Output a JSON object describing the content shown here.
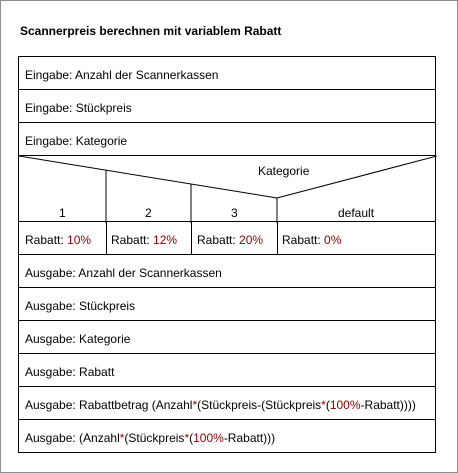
{
  "title": "Scannerpreis berechnen mit variablem Rabatt",
  "inputs": [
    {
      "prefix": "Eingabe: ",
      "text": "Anzahl der Scannerkassen"
    },
    {
      "prefix": "Eingabe: ",
      "text": "Stückpreis"
    },
    {
      "prefix": "Eingabe: ",
      "text": "Kategorie"
    }
  ],
  "decision": {
    "label": "Kategorie",
    "branches": [
      {
        "value": "1",
        "action_prefix": "Rabatt: ",
        "action_num": "10%"
      },
      {
        "value": "2",
        "action_prefix": "Rabatt: ",
        "action_num": "12%"
      },
      {
        "value": "3",
        "action_prefix": "Rabatt: ",
        "action_num": "20%"
      },
      {
        "value": "default",
        "action_prefix": "Rabatt: ",
        "action_num": "0%"
      }
    ]
  },
  "outputs": [
    {
      "prefix": "Ausgabe: ",
      "text": "Anzahl der Scannerkassen"
    },
    {
      "prefix": "Ausgabe: ",
      "text": "Stückpreis"
    },
    {
      "prefix": "Ausgabe: ",
      "text": "Kategorie"
    },
    {
      "prefix": "Ausgabe: ",
      "text": "Rabatt"
    }
  ],
  "formula1": {
    "prefix": "Ausgabe: ",
    "parts": [
      "Rabattbetrag (Anzahl",
      "*",
      "(Stückpreis-(Stückpreis",
      "*",
      "(",
      "100%",
      "-Rabatt))))"
    ]
  },
  "formula2": {
    "prefix": "Ausgabe: ",
    "parts": [
      "(Anzahl",
      "*",
      "(Stückpreis",
      "*",
      "(",
      "100%",
      "-Rabatt)))"
    ]
  }
}
